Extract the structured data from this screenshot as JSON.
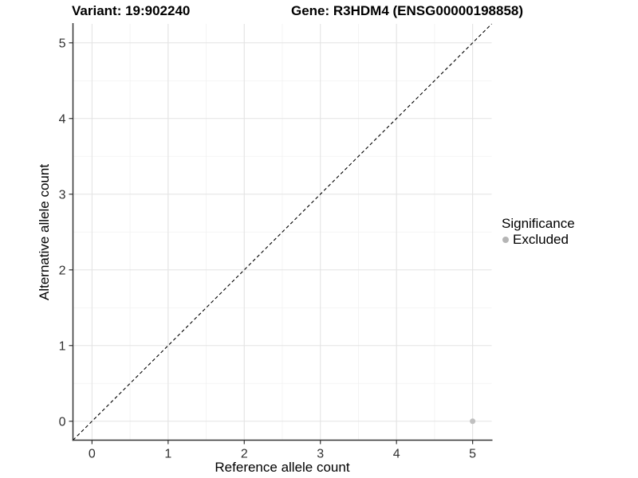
{
  "header": {
    "variant_title": "Variant: 19:902240",
    "gene_title": "Gene: R3HDM4 (ENSG00000198858)"
  },
  "chart_data": {
    "type": "scatter",
    "title": "Variant: 19:902240   Gene: R3HDM4 (ENSG00000198858)",
    "xlabel": "Reference allele count",
    "ylabel": "Alternative allele count",
    "xlim": [
      0,
      5
    ],
    "ylim": [
      0,
      5
    ],
    "expansion": 0.25,
    "x_ticks": [
      0,
      1,
      2,
      3,
      4,
      5
    ],
    "y_ticks": [
      0,
      1,
      2,
      3,
      4,
      5
    ],
    "x_tick_labels": [
      "0",
      "1",
      "2",
      "3",
      "4",
      "5"
    ],
    "y_tick_labels": [
      "0",
      "1",
      "2",
      "3",
      "4",
      "5"
    ],
    "grid": true,
    "minor_grid": true,
    "identity_line": {
      "type": "abline",
      "slope": 1,
      "intercept": 0,
      "style": "dashed",
      "color": "#000000"
    },
    "series": [
      {
        "name": "Excluded",
        "color": "#c0c0c0",
        "points": [
          {
            "x": 5,
            "y": 0
          }
        ]
      }
    ],
    "legend": {
      "title": "Significance",
      "position": "right",
      "items": [
        {
          "label": "Excluded",
          "color": "#b5b5b5",
          "marker": "circle"
        }
      ]
    },
    "colors": {
      "background": "#ffffff",
      "major_grid": "#e3e3e3",
      "minor_grid": "#f1f1f1",
      "axis_line": "#333333",
      "tick_mark": "#333333",
      "tick_label": "#303030"
    }
  }
}
